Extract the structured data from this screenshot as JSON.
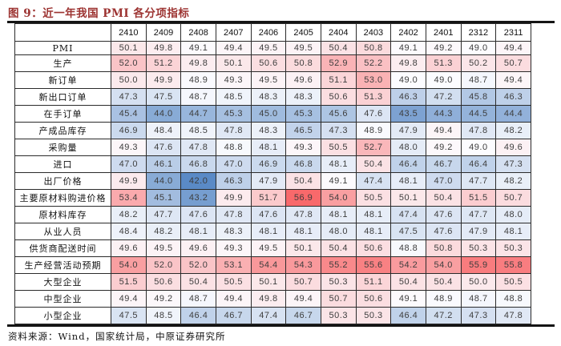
{
  "figure": {
    "title": "图 9：近一年我国 PMI 各分项指标",
    "title_color": "#9C3331",
    "source": "资料来源：Wind，国家统计局，中原证券研究所"
  },
  "chart_data": {
    "type": "heatmap",
    "title": "近一年我国 PMI 各分项指标",
    "columns": [
      "2410",
      "2409",
      "2408",
      "2407",
      "2406",
      "2405",
      "2404",
      "2403",
      "2402",
      "2401",
      "2312",
      "2311"
    ],
    "rows": [
      {
        "label": "PMI",
        "values": [
          50.1,
          49.8,
          49.1,
          49.4,
          49.5,
          49.5,
          50.4,
          50.8,
          49.1,
          49.2,
          49.0,
          49.4
        ]
      },
      {
        "label": "生产",
        "values": [
          52.0,
          51.2,
          49.8,
          50.1,
          50.6,
          50.8,
          52.9,
          52.2,
          49.8,
          51.3,
          50.2,
          50.7
        ]
      },
      {
        "label": "新订单",
        "values": [
          50.0,
          49.9,
          48.9,
          49.3,
          49.5,
          49.6,
          51.1,
          53.0,
          49.0,
          49.0,
          48.7,
          49.4
        ]
      },
      {
        "label": "新出口订单",
        "values": [
          47.3,
          47.5,
          48.7,
          48.5,
          48.3,
          48.3,
          50.6,
          51.3,
          46.3,
          47.2,
          45.8,
          46.3
        ]
      },
      {
        "label": "在手订单",
        "values": [
          45.4,
          44.0,
          44.7,
          45.3,
          45.0,
          45.3,
          45.6,
          47.6,
          43.5,
          44.3,
          44.5,
          44.4
        ]
      },
      {
        "label": "产成品库存",
        "values": [
          46.9,
          48.4,
          48.5,
          47.8,
          48.3,
          46.5,
          47.3,
          48.9,
          47.9,
          49.4,
          47.8,
          48.2
        ]
      },
      {
        "label": "采购量",
        "values": [
          49.3,
          47.6,
          47.8,
          48.8,
          48.1,
          49.3,
          50.5,
          52.7,
          48.0,
          49.2,
          49.0,
          49.6
        ]
      },
      {
        "label": "进口",
        "values": [
          47.0,
          46.1,
          46.8,
          47.0,
          46.9,
          46.8,
          48.1,
          50.4,
          46.4,
          46.7,
          46.4,
          47.3
        ]
      },
      {
        "label": "出厂价格",
        "values": [
          49.9,
          44.0,
          42.0,
          46.3,
          47.9,
          50.4,
          49.1,
          47.4,
          48.1,
          47.0,
          47.7,
          48.2
        ]
      },
      {
        "label": "主要原材料购进价格",
        "values": [
          53.4,
          45.1,
          43.2,
          49.9,
          51.7,
          56.9,
          54.0,
          50.5,
          50.1,
          50.4,
          51.5,
          50.7
        ]
      },
      {
        "label": "原材料库存",
        "values": [
          48.2,
          47.7,
          47.6,
          47.8,
          47.6,
          47.8,
          48.1,
          48.1,
          47.4,
          47.6,
          47.7,
          48.0
        ]
      },
      {
        "label": "从业人员",
        "values": [
          48.4,
          48.2,
          48.1,
          48.3,
          48.1,
          48.1,
          48.0,
          48.1,
          47.5,
          47.6,
          47.9,
          48.1
        ]
      },
      {
        "label": "供货商配送时间",
        "values": [
          49.6,
          49.5,
          49.6,
          49.3,
          49.5,
          50.1,
          50.4,
          50.6,
          48.8,
          50.8,
          50.3,
          50.3
        ]
      },
      {
        "label": "生产经营活动预期",
        "values": [
          54.0,
          52.0,
          52.0,
          53.1,
          54.4,
          54.3,
          55.2,
          55.6,
          54.2,
          54.0,
          55.9,
          55.8
        ]
      },
      {
        "label": "大型企业",
        "values": [
          51.5,
          50.6,
          50.4,
          50.5,
          50.1,
          50.7,
          50.3,
          51.1,
          50.4,
          50.4,
          50.0,
          50.5
        ]
      },
      {
        "label": "中型企业",
        "values": [
          49.4,
          49.2,
          48.7,
          49.4,
          49.8,
          49.4,
          50.7,
          50.6,
          49.1,
          48.9,
          48.7,
          48.8
        ]
      },
      {
        "label": "小型企业",
        "values": [
          47.5,
          48.5,
          46.4,
          46.7,
          47.4,
          46.7,
          50.3,
          50.3,
          46.4,
          47.2,
          47.3,
          47.8
        ]
      }
    ],
    "value_format": "0.0",
    "colorscale": {
      "type": "3-color",
      "low_color": "#5A8AC6",
      "mid_color": "#FCFCFF",
      "high_color": "#F8696B",
      "low_anchor": "min",
      "mid_anchor": "median",
      "high_anchor": "max"
    },
    "legend": "none",
    "grid": true
  }
}
